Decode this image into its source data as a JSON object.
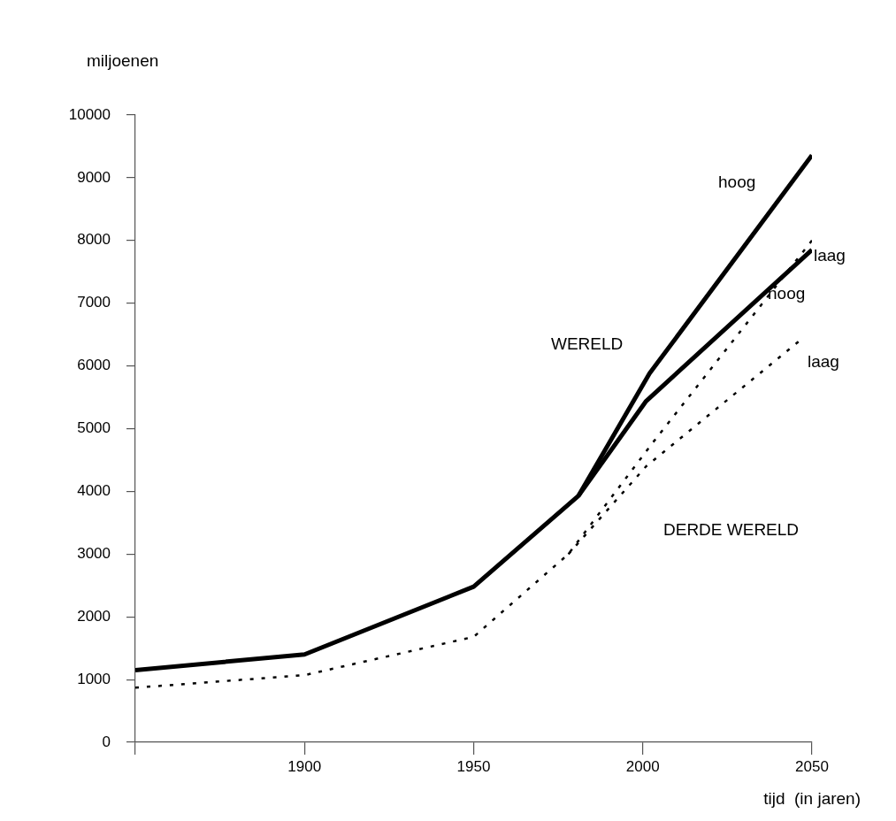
{
  "chart_data": {
    "type": "line",
    "xlabel": "tijd  (in jaren)",
    "ylabel": "miljoenen",
    "xlim": [
      1850,
      2050
    ],
    "xticks": [
      {
        "value": 1850,
        "label": null
      },
      1900,
      1950,
      2000,
      2050
    ],
    "ylim": [
      0,
      10000
    ],
    "yticks": [
      0,
      1000,
      2000,
      3000,
      4000,
      5000,
      6000,
      7000,
      8000,
      9000,
      10000
    ],
    "grid": false,
    "legend": false,
    "marker": "none",
    "series": [
      {
        "color": "#000000",
        "line_style": "solid",
        "x": [
          1850,
          1900,
          1950,
          1981,
          2002,
          2050
        ],
        "values": [
          1150,
          1400,
          2480,
          3930,
          5880,
          9360
        ]
      },
      {
        "color": "#000000",
        "line_style": "solid",
        "x": [
          1981,
          2001,
          2050
        ],
        "values": [
          3930,
          5440,
          7850
        ]
      },
      {
        "color": "#000000",
        "line_style": "dotted",
        "x": [
          1850,
          1900,
          1950,
          1978,
          2003,
          2050
        ],
        "values": [
          870,
          1070,
          1680,
          3000,
          4780,
          8000
        ]
      },
      {
        "color": "#000000",
        "line_style": "dotted",
        "x": [
          1978,
          2001,
          2047
        ],
        "values": [
          3000,
          4400,
          6430
        ]
      }
    ],
    "annotations": [
      "hoog",
      "laag",
      "WERELD",
      "hoog",
      "laag",
      "DERDE WERELD"
    ]
  }
}
